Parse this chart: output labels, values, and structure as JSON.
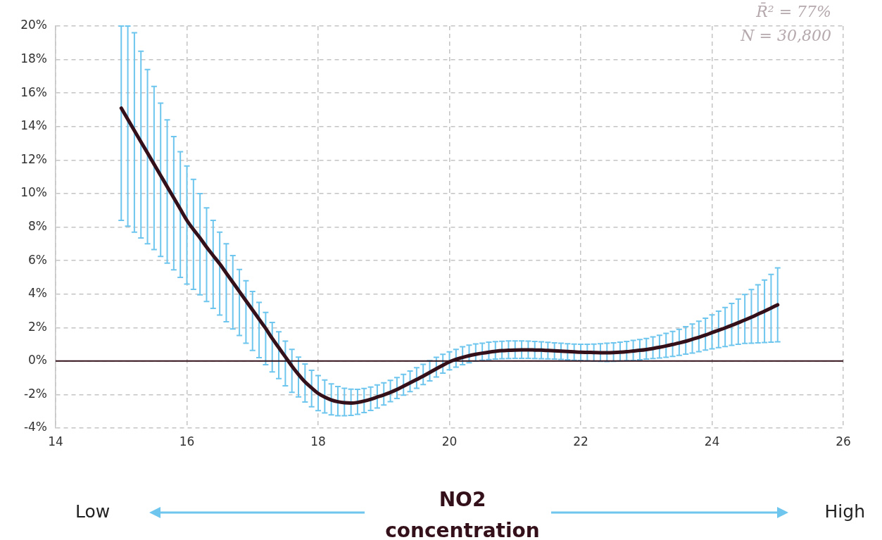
{
  "chart_data": {
    "type": "line",
    "xlabel": "NO2 concentration",
    "annotations": [
      "R̄² = 77%",
      "N = 30,800",
      "Low",
      "High"
    ],
    "xlim": [
      14,
      26
    ],
    "xticks": [
      14,
      16,
      18,
      20,
      22,
      24,
      26
    ],
    "ylim": [
      -4,
      20
    ],
    "yticks": [
      {
        "value": -4,
        "label": "-4%"
      },
      {
        "value": -2,
        "label": "-2%"
      },
      {
        "value": 0,
        "label": "0%"
      },
      {
        "value": 2,
        "label": "2%"
      },
      {
        "value": 4,
        "label": "4%"
      },
      {
        "value": 6,
        "label": "6%"
      },
      {
        "value": 8,
        "label": "8%"
      },
      {
        "value": 10,
        "label": "10%"
      },
      {
        "value": 12,
        "label": "12%"
      },
      {
        "value": 14,
        "label": "14%"
      },
      {
        "value": 16,
        "label": "16%"
      },
      {
        "value": 18,
        "label": "18%"
      },
      {
        "value": 20,
        "label": "20%"
      }
    ],
    "ref_lines": [
      {
        "axis": "y",
        "value": 0,
        "color": "#33101a",
        "line_style": "solid"
      }
    ],
    "grid": true,
    "legend": false,
    "marker": "none",
    "line_style": "solid",
    "series": [
      {
        "color": "#33101a",
        "x": [
          15.0,
          15.1,
          15.2,
          15.3,
          15.4,
          15.5,
          15.6,
          15.7,
          15.8,
          15.9,
          16.0,
          16.1,
          16.2,
          16.3,
          16.4,
          16.5,
          16.6,
          16.7,
          16.8,
          16.9,
          17.0,
          17.1,
          17.2,
          17.3,
          17.4,
          17.5,
          17.6,
          17.7,
          17.8,
          17.9,
          18.0,
          18.1,
          18.2,
          18.3,
          18.4,
          18.5,
          18.6,
          18.7,
          18.8,
          18.9,
          19.0,
          19.1,
          19.2,
          19.3,
          19.4,
          19.5,
          19.6,
          19.7,
          19.8,
          19.9,
          20.0,
          20.1,
          20.2,
          20.3,
          20.4,
          20.5,
          20.6,
          20.7,
          20.8,
          20.9,
          21.0,
          21.1,
          21.2,
          21.3,
          21.4,
          21.5,
          21.6,
          21.7,
          21.8,
          21.9,
          22.0,
          22.1,
          22.2,
          22.3,
          22.4,
          22.5,
          22.6,
          22.7,
          22.8,
          22.9,
          23.0,
          23.1,
          23.2,
          23.3,
          23.4,
          23.5,
          23.6,
          23.7,
          23.8,
          23.9,
          24.0,
          24.1,
          24.2,
          24.3,
          24.4,
          24.5,
          24.6,
          24.7,
          24.8,
          24.9,
          25.0
        ],
        "values": [
          15.1,
          14.43,
          13.76,
          13.09,
          12.42,
          11.75,
          11.08,
          10.41,
          9.74,
          9.07,
          8.4,
          7.85,
          7.35,
          6.8,
          6.3,
          5.8,
          5.25,
          4.7,
          4.15,
          3.6,
          3.05,
          2.5,
          1.95,
          1.35,
          0.8,
          0.25,
          -0.3,
          -0.8,
          -1.25,
          -1.6,
          -1.93,
          -2.15,
          -2.32,
          -2.43,
          -2.49,
          -2.51,
          -2.47,
          -2.39,
          -2.28,
          -2.15,
          -2.02,
          -1.87,
          -1.7,
          -1.5,
          -1.3,
          -1.1,
          -0.9,
          -0.68,
          -0.46,
          -0.25,
          -0.05,
          0.1,
          0.22,
          0.32,
          0.4,
          0.47,
          0.53,
          0.58,
          0.62,
          0.64,
          0.66,
          0.67,
          0.67,
          0.66,
          0.65,
          0.63,
          0.61,
          0.59,
          0.57,
          0.55,
          0.53,
          0.52,
          0.51,
          0.5,
          0.5,
          0.51,
          0.53,
          0.56,
          0.6,
          0.64,
          0.69,
          0.75,
          0.82,
          0.9,
          0.99,
          1.08,
          1.18,
          1.3,
          1.42,
          1.55,
          1.7,
          1.84,
          1.98,
          2.13,
          2.29,
          2.45,
          2.62,
          2.8,
          2.98,
          3.17,
          3.36
        ],
        "errors": [
          [
            8.4,
            20
          ],
          [
            8.05,
            20
          ],
          [
            7.7,
            19.6
          ],
          [
            7.35,
            18.5
          ],
          [
            7.0,
            17.4
          ],
          [
            6.65,
            16.4
          ],
          [
            6.25,
            15.4
          ],
          [
            5.85,
            14.4
          ],
          [
            5.45,
            13.4
          ],
          [
            5.0,
            12.5
          ],
          [
            4.6,
            11.65
          ],
          [
            4.28,
            10.85
          ],
          [
            3.95,
            10.0
          ],
          [
            3.55,
            9.15
          ],
          [
            3.15,
            8.4
          ],
          [
            2.75,
            7.7
          ],
          [
            2.35,
            7.0
          ],
          [
            1.92,
            6.3
          ],
          [
            1.53,
            5.47
          ],
          [
            1.07,
            4.8
          ],
          [
            0.63,
            4.15
          ],
          [
            0.2,
            3.5
          ],
          [
            -0.22,
            2.9
          ],
          [
            -0.65,
            2.3
          ],
          [
            -1.05,
            1.75
          ],
          [
            -1.48,
            1.19
          ],
          [
            -1.87,
            0.7
          ],
          [
            -2.14,
            0.23
          ],
          [
            -2.45,
            -0.18
          ],
          [
            -2.73,
            -0.55
          ],
          [
            -2.96,
            -0.87
          ],
          [
            -3.1,
            -1.13
          ],
          [
            -3.21,
            -1.36
          ],
          [
            -3.26,
            -1.52
          ],
          [
            -3.26,
            -1.63
          ],
          [
            -3.24,
            -1.68
          ],
          [
            -3.18,
            -1.69
          ],
          [
            -3.08,
            -1.64
          ],
          [
            -2.95,
            -1.55
          ],
          [
            -2.8,
            -1.43
          ],
          [
            -2.62,
            -1.3
          ],
          [
            -2.42,
            -1.15
          ],
          [
            -2.23,
            -0.98
          ],
          [
            -2.03,
            -0.8
          ],
          [
            -1.83,
            -0.6
          ],
          [
            -1.62,
            -0.4
          ],
          [
            -1.4,
            -0.2
          ],
          [
            -1.18,
            0.02
          ],
          [
            -0.95,
            0.22
          ],
          [
            -0.72,
            0.4
          ],
          [
            -0.52,
            0.55
          ],
          [
            -0.36,
            0.7
          ],
          [
            -0.22,
            0.85
          ],
          [
            -0.1,
            0.95
          ],
          [
            -0.01,
            1.02
          ],
          [
            0.05,
            1.07
          ],
          [
            0.09,
            1.13
          ],
          [
            0.12,
            1.16
          ],
          [
            0.14,
            1.18
          ],
          [
            0.15,
            1.2
          ],
          [
            0.16,
            1.2
          ],
          [
            0.16,
            1.2
          ],
          [
            0.16,
            1.19
          ],
          [
            0.15,
            1.17
          ],
          [
            0.14,
            1.15
          ],
          [
            0.13,
            1.12
          ],
          [
            0.12,
            1.09
          ],
          [
            0.1,
            1.06
          ],
          [
            0.08,
            1.03
          ],
          [
            0.05,
            1.01
          ],
          [
            0.03,
            1.0
          ],
          [
            0.01,
            1.0
          ],
          [
            -0.01,
            1.01
          ],
          [
            -0.02,
            1.03
          ],
          [
            -0.03,
            1.06
          ],
          [
            -0.02,
            1.09
          ],
          [
            0.0,
            1.13
          ],
          [
            0.02,
            1.17
          ],
          [
            0.04,
            1.23
          ],
          [
            0.08,
            1.29
          ],
          [
            0.12,
            1.35
          ],
          [
            0.15,
            1.44
          ],
          [
            0.18,
            1.54
          ],
          [
            0.22,
            1.65
          ],
          [
            0.28,
            1.77
          ],
          [
            0.34,
            1.9
          ],
          [
            0.41,
            2.05
          ],
          [
            0.48,
            2.21
          ],
          [
            0.56,
            2.38
          ],
          [
            0.65,
            2.56
          ],
          [
            0.73,
            2.76
          ],
          [
            0.8,
            2.98
          ],
          [
            0.87,
            3.2
          ],
          [
            0.94,
            3.44
          ],
          [
            1.0,
            3.7
          ],
          [
            1.05,
            3.98
          ],
          [
            1.07,
            4.27
          ],
          [
            1.09,
            4.55
          ],
          [
            1.11,
            4.84
          ],
          [
            1.13,
            5.17
          ],
          [
            1.15,
            5.56
          ]
        ]
      }
    ]
  }
}
